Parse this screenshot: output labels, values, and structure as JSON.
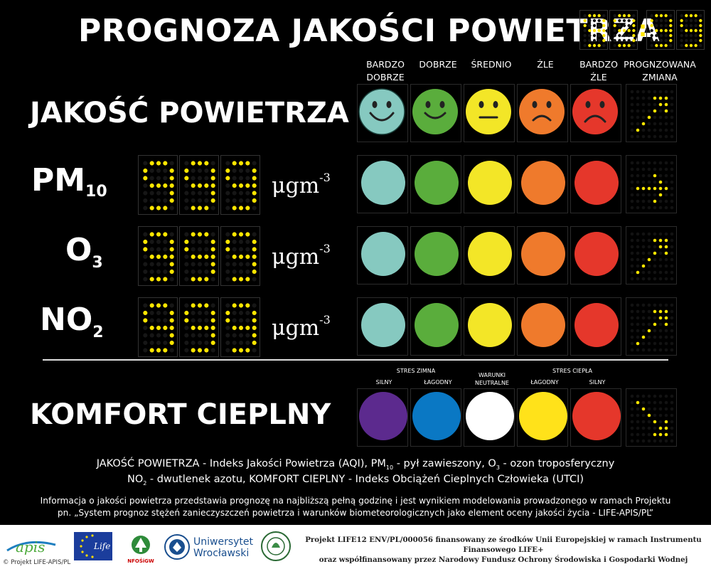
{
  "title": "PROGNOZA JAKOŚCI POWIETRZA",
  "clock": {
    "h1": "9",
    "h2": "9",
    "m1": "9",
    "m2": "9",
    "sep": ":"
  },
  "columns": [
    {
      "line1": "BARDZO",
      "line2": "DOBRZE"
    },
    {
      "line1": "",
      "line2": "DOBRZE"
    },
    {
      "line1": "",
      "line2": "ŚREDNIO"
    },
    {
      "line1": "",
      "line2": "ŹLE"
    },
    {
      "line1": "BARDZO",
      "line2": "ŹLE"
    },
    {
      "line1": "PROGNZOWANA",
      "line2": "ZMIANA"
    }
  ],
  "rows": {
    "aqi": {
      "label": "JAKOŚĆ POWIETRZA",
      "trend": "up-right"
    },
    "pm10": {
      "label_main": "PM",
      "label_sub": "10",
      "value": "999",
      "unit": "μgm",
      "unit_exp": "-3",
      "trend": "right"
    },
    "o3": {
      "label_main": "O",
      "label_sub": "3",
      "value": "999",
      "unit": "μgm",
      "unit_exp": "-3",
      "trend": "up-right"
    },
    "no2": {
      "label_main": "NO",
      "label_sub": "2",
      "value": "999",
      "unit": "μgm",
      "unit_exp": "-3",
      "trend": "up-right"
    },
    "comfort": {
      "label": "KOMFORT CIEPLNY",
      "trend": "down-right"
    }
  },
  "colors": {
    "very_good": "#86c9c0",
    "good": "#5aad3c",
    "moderate": "#f3e627",
    "bad": "#ef7a2c",
    "very_bad": "#e5372b",
    "cold_strong": "#5c2a8e",
    "cold_mild": "#0a78c4",
    "neutral": "#ffffff",
    "heat_mild": "#ffe21a",
    "heat_strong": "#e5372b",
    "led": "#ffe600"
  },
  "comfort_headers": {
    "cold": "STRES ZIMNA",
    "neutral1": "WARUNKI",
    "neutral2": "NEUTRALNE",
    "heat": "STRES CIEPŁA",
    "strong": "SILNY",
    "mild": "ŁAGODNY",
    "mild2": "ŁAGODNY",
    "strong2": "SILNY"
  },
  "legend": {
    "line1a": "JAKOŚĆ POWIETRZA - Indeks Jakości Powietrza (AQI), PM",
    "line1sub": "10",
    "line1b": " - pył zawieszony, O",
    "line1sub2": "3",
    "line1c": " - ozon troposferyczny",
    "line2a": "NO",
    "line2sub": "2",
    "line2b": " - dwutlenek azotu, KOMFORT CIEPLNY - Indeks Obciążeń Cieplnych Człowieka (UTCI)",
    "info1": "Informacja o  jakości powietrza przedstawia prognozę na najbliższą pełną godzinę i jest wynikiem modelowania prowadzonego w ramach Projektu",
    "info2": "pn. „System prognoz stężeń zanieczyszczeń powietrza i warunków biometeorologicznych jako element oceny jakości życia - LIFE-APIS/PL”"
  },
  "footer": {
    "copyright": "© Projekt LIFE-APIS/PL",
    "apis": "apis",
    "life": "Life",
    "nfos": "NFOŚiGW",
    "uni1": "Uniwersytet",
    "uni2": "Wrocławski",
    "funding1": "Projekt LIFE12 ENV/PL/000056 finansowany ze środków Unii Europejskiej w ramach Instrumentu Finansowego LIFE+",
    "funding2": "oraz współfinansowany przez Narodowy Fundusz Ochrony Środowiska i Gospodarki Wodnej"
  }
}
